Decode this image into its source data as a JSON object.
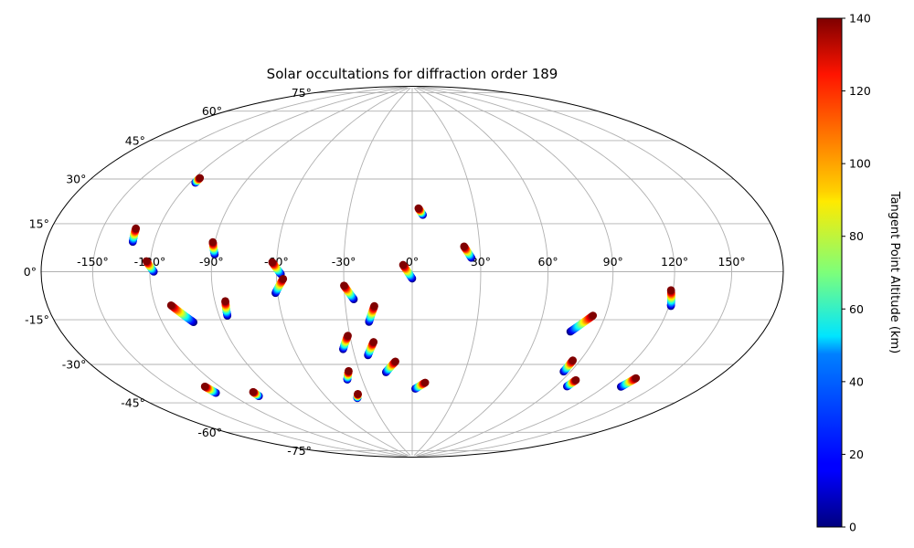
{
  "chart_data": {
    "type": "scatter",
    "projection": "hammer",
    "title": "Solar occultations for diffraction order 189",
    "grid": true,
    "longitude_tick_labels": [
      "-150°",
      "-120°",
      "-90°",
      "-60°",
      "-30°",
      "0°",
      "30°",
      "60°",
      "90°",
      "120°",
      "150°"
    ],
    "latitude_tick_labels": [
      "-75°",
      "-60°",
      "-45°",
      "-30°",
      "-15°",
      "0°",
      "15°",
      "30°",
      "45°",
      "60°",
      "75°"
    ],
    "xlim": [
      -180,
      180
    ],
    "ylim": [
      -90,
      90
    ],
    "colorbar": {
      "label": "Tangent Point Altitude (km)",
      "colormap": "jet",
      "range": [
        0,
        140
      ],
      "tick_labels": [
        "0",
        "20",
        "40",
        "60",
        "80",
        "100",
        "120",
        "140"
      ]
    },
    "series": [
      {
        "lon_start": -131,
        "lat_start": 11,
        "lon_end": -132,
        "lat_end": 16
      },
      {
        "lon_start": -117,
        "lat_start": 35,
        "lon_end": -117,
        "lat_end": 37
      },
      {
        "lon_start": -118,
        "lat_start": 0,
        "lon_end": -122,
        "lat_end": 4
      },
      {
        "lon_start": -89,
        "lat_start": 7,
        "lon_end": -91,
        "lat_end": 12
      },
      {
        "lon_start": -86,
        "lat_start": -18,
        "lon_end": -85,
        "lat_end": -12
      },
      {
        "lon_start": -104,
        "lat_start": -20,
        "lon_end": -112,
        "lat_end": -13
      },
      {
        "lon_start": -128,
        "lat_start": -48,
        "lon_end": -129,
        "lat_end": -45
      },
      {
        "lon_start": -104,
        "lat_start": -52,
        "lon_end": -104,
        "lat_end": -50
      },
      {
        "lon_start": -58,
        "lat_start": -1,
        "lon_end": -62,
        "lat_end": 4
      },
      {
        "lon_start": -61,
        "lat_start": -9,
        "lon_end": -57,
        "lat_end": -3
      },
      {
        "lon_start": -26,
        "lat_start": -12,
        "lon_end": -30,
        "lat_end": -6
      },
      {
        "lon_start": -35,
        "lat_start": -34,
        "lon_end": -31,
        "lat_end": -28
      },
      {
        "lon_start": -39,
        "lat_start": -48,
        "lon_end": -36,
        "lat_end": -44
      },
      {
        "lon_start": -39,
        "lat_start": -57,
        "lon_end": -37,
        "lat_end": -55
      },
      {
        "lon_start": -20,
        "lat_start": -22,
        "lon_end": -17,
        "lat_end": -15
      },
      {
        "lon_start": -23,
        "lat_start": -37,
        "lon_end": -19,
        "lat_end": -31
      },
      {
        "lon_start": -15,
        "lat_start": -45,
        "lon_end": -9,
        "lat_end": -40
      },
      {
        "lon_start": 0,
        "lat_start": -3,
        "lon_end": -4,
        "lat_end": 3
      },
      {
        "lon_start": 5,
        "lat_start": 25,
        "lon_end": 3,
        "lat_end": 28
      },
      {
        "lon_start": 2,
        "lat_start": -53,
        "lon_end": 8,
        "lat_end": -50
      },
      {
        "lon_start": 26,
        "lat_start": 6,
        "lon_end": 23,
        "lat_end": 11
      },
      {
        "lon_start": 76,
        "lat_start": -25,
        "lon_end": 84,
        "lat_end": -18
      },
      {
        "lon_start": 86,
        "lat_start": -42,
        "lon_end": 86,
        "lat_end": -37
      },
      {
        "lon_start": 97,
        "lat_start": -48,
        "lon_end": 98,
        "lat_end": -45
      },
      {
        "lon_start": 121,
        "lat_start": -13,
        "lon_end": 119,
        "lat_end": -7
      },
      {
        "lon_start": 130,
        "lat_start": -45,
        "lon_end": 132,
        "lat_end": -41
      }
    ]
  }
}
